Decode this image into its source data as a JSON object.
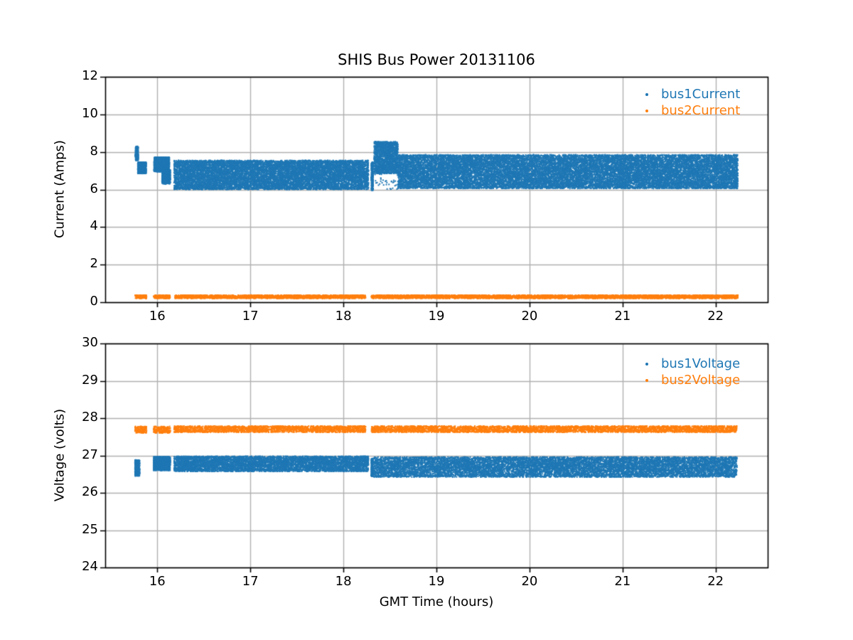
{
  "chart_data": [
    {
      "type": "scatter",
      "title": "SHIS Bus Power 20131106",
      "xlabel": "",
      "ylabel": "Current (Amps)",
      "xlim": [
        15.44,
        22.56
      ],
      "ylim": [
        0,
        12
      ],
      "xticks": [
        16,
        17,
        18,
        19,
        20,
        21,
        22
      ],
      "yticks": [
        0,
        2,
        4,
        6,
        8,
        10,
        12
      ],
      "grid": true,
      "legend_position": "upper right",
      "legend_frame": false,
      "marker": "dot",
      "series": [
        {
          "name": "bus1Current",
          "color": "#1f77b4",
          "segments": [
            {
              "t": [
                15.765,
                15.795
              ],
              "v": [
                7.55,
                8.3
              ],
              "density": 12000
            },
            {
              "t": [
                15.79,
                15.88
              ],
              "v": [
                6.85,
                7.45
              ],
              "density": 12000
            },
            {
              "t": [
                15.965,
                16.13
              ],
              "v": [
                6.95,
                7.72
              ],
              "density": 12000
            },
            {
              "t": [
                16.05,
                16.14
              ],
              "v": [
                6.3,
                7.05
              ],
              "density": 9000
            },
            {
              "t": [
                16.18,
                18.27
              ],
              "v": [
                6.0,
                7.55
              ],
              "density": 5200
            },
            {
              "t": [
                18.3,
                18.32
              ],
              "v": [
                5.95,
                7.45
              ],
              "density": 15000
            },
            {
              "t": [
                18.33,
                18.585
              ],
              "v": [
                6.85,
                8.55
              ],
              "density": 6500
            },
            {
              "t": [
                18.33,
                18.585
              ],
              "v": [
                6.0,
                6.85
              ],
              "density": 130
            },
            {
              "t": [
                18.585,
                22.24
              ],
              "v": [
                6.05,
                7.85
              ],
              "density": 5200
            }
          ]
        },
        {
          "name": "bus2Current",
          "color": "#ff7f0e",
          "segments": [
            {
              "t": [
                15.76,
                15.885
              ],
              "v": [
                0.2,
                0.38
              ],
              "density": 1200
            },
            {
              "t": [
                15.96,
                16.14
              ],
              "v": [
                0.2,
                0.38
              ],
              "density": 1200
            },
            {
              "t": [
                16.19,
                18.24
              ],
              "v": [
                0.2,
                0.38
              ],
              "density": 1000
            },
            {
              "t": [
                18.3,
                22.24
              ],
              "v": [
                0.2,
                0.38
              ],
              "density": 1000
            }
          ]
        }
      ]
    },
    {
      "type": "scatter",
      "title": "",
      "xlabel": "GMT Time (hours)",
      "ylabel": "Voltage (volts)",
      "xlim": [
        15.44,
        22.56
      ],
      "ylim": [
        24,
        30
      ],
      "xticks": [
        16,
        17,
        18,
        19,
        20,
        21,
        22
      ],
      "yticks": [
        24,
        25,
        26,
        27,
        28,
        29,
        30
      ],
      "grid": true,
      "legend_position": "upper right",
      "legend_frame": false,
      "marker": "dot",
      "series": [
        {
          "name": "bus1Voltage",
          "color": "#1f77b4",
          "segments": [
            {
              "t": [
                15.76,
                15.81
              ],
              "v": [
                26.45,
                26.88
              ],
              "density": 12000
            },
            {
              "t": [
                15.96,
                16.14
              ],
              "v": [
                26.6,
                26.97
              ],
              "density": 9000
            },
            {
              "t": [
                16.18,
                18.27
              ],
              "v": [
                26.57,
                26.98
              ],
              "density": 2800
            },
            {
              "t": [
                18.3,
                18.32
              ],
              "v": [
                26.44,
                26.92
              ],
              "density": 15000
            },
            {
              "t": [
                18.33,
                22.23
              ],
              "v": [
                26.42,
                26.96
              ],
              "density": 2800
            }
          ]
        },
        {
          "name": "bus2Voltage",
          "color": "#ff7f0e",
          "segments": [
            {
              "t": [
                15.76,
                15.885
              ],
              "v": [
                27.6,
                27.78
              ],
              "density": 1200
            },
            {
              "t": [
                15.96,
                16.14
              ],
              "v": [
                27.6,
                27.78
              ],
              "density": 1200
            },
            {
              "t": [
                16.18,
                18.24
              ],
              "v": [
                27.62,
                27.79
              ],
              "density": 1000
            },
            {
              "t": [
                18.3,
                22.23
              ],
              "v": [
                27.62,
                27.79
              ],
              "density": 1000
            }
          ]
        }
      ]
    }
  ],
  "colors": {
    "grid": "#b0b0b0",
    "spine": "#000000",
    "background": "#ffffff",
    "bus1": "#1f77b4",
    "bus2": "#ff7f0e"
  }
}
